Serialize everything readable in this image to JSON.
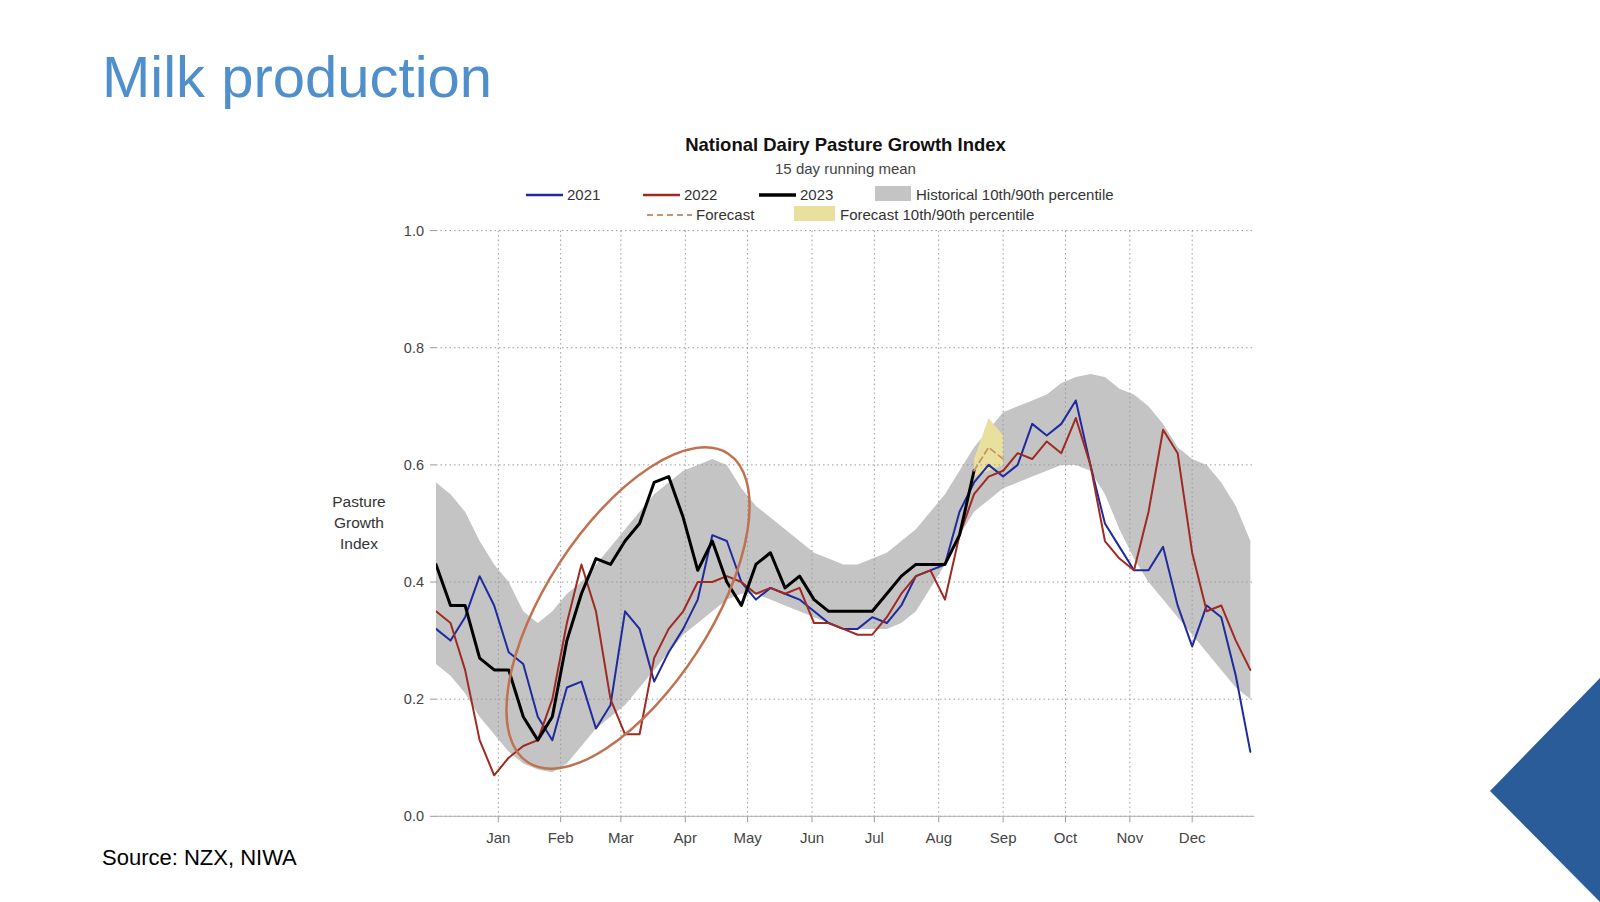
{
  "page": {
    "title": "Milk production",
    "source": "Source: NZX, NIWA"
  },
  "chart_data": {
    "type": "line",
    "title": "National Dairy Pasture Growth Index",
    "subtitle": "15 day running mean",
    "y_label": "Pasture Growth Index",
    "x": [
      -14,
      -7,
      0,
      7,
      14,
      21,
      28,
      35,
      42,
      49,
      56,
      63,
      70,
      77,
      84,
      91,
      98,
      105,
      112,
      119,
      126,
      133,
      140,
      147,
      154,
      161,
      168,
      175,
      182,
      189,
      196,
      203,
      210,
      217,
      224,
      231,
      238,
      245,
      252,
      259,
      266,
      273,
      280,
      287,
      294,
      301,
      308,
      315,
      322,
      329,
      336,
      343,
      350,
      357,
      364,
      371,
      378
    ],
    "xlim": [
      -14,
      380
    ],
    "xticks": [
      {
        "value": 16,
        "label": "Jan"
      },
      {
        "value": 46,
        "label": "Feb"
      },
      {
        "value": 75,
        "label": "Mar"
      },
      {
        "value": 106,
        "label": "Apr"
      },
      {
        "value": 136,
        "label": "May"
      },
      {
        "value": 167,
        "label": "Jun"
      },
      {
        "value": 197,
        "label": "Jul"
      },
      {
        "value": 228,
        "label": "Aug"
      },
      {
        "value": 259,
        "label": "Sep"
      },
      {
        "value": 289,
        "label": "Oct"
      },
      {
        "value": 320,
        "label": "Nov"
      },
      {
        "value": 350,
        "label": "Dec"
      }
    ],
    "ylim": [
      0,
      1
    ],
    "yticks": [
      {
        "value": 0,
        "label": "0.0"
      },
      0.2,
      0.4,
      0.6,
      0.8,
      {
        "value": 1,
        "label": "1.0"
      }
    ],
    "grid": true,
    "series": [
      {
        "name": "2021",
        "color": "#1f2a9e",
        "values": [
          0.32,
          0.3,
          0.34,
          0.41,
          0.36,
          0.28,
          0.26,
          0.17,
          0.13,
          0.22,
          0.23,
          0.15,
          0.19,
          0.35,
          0.32,
          0.23,
          0.28,
          0.32,
          0.37,
          0.48,
          0.47,
          0.4,
          0.37,
          0.39,
          0.38,
          0.37,
          0.35,
          0.33,
          0.32,
          0.32,
          0.34,
          0.33,
          0.36,
          0.41,
          0.42,
          0.43,
          0.52,
          0.57,
          0.6,
          0.58,
          0.6,
          0.67,
          0.65,
          0.67,
          0.71,
          0.6,
          0.5,
          0.46,
          0.42,
          0.42,
          0.46,
          0.36,
          0.29,
          0.36,
          0.34,
          0.24,
          0.11
        ]
      },
      {
        "name": "2022",
        "color": "#9e2a22",
        "values": [
          0.35,
          0.33,
          0.25,
          0.13,
          0.07,
          0.1,
          0.12,
          0.13,
          0.2,
          0.33,
          0.43,
          0.35,
          0.2,
          0.14,
          0.14,
          0.27,
          0.32,
          0.35,
          0.4,
          0.4,
          0.41,
          0.4,
          0.38,
          0.39,
          0.38,
          0.39,
          0.33,
          0.33,
          0.32,
          0.31,
          0.31,
          0.34,
          0.38,
          0.41,
          0.42,
          0.37,
          0.48,
          0.55,
          0.58,
          0.59,
          0.62,
          0.61,
          0.64,
          0.62,
          0.68,
          0.6,
          0.47,
          0.44,
          0.42,
          0.52,
          0.66,
          0.62,
          0.45,
          0.35,
          0.36,
          0.3,
          0.25
        ]
      },
      {
        "name": "2023",
        "color": "#000000",
        "values": [
          0.43,
          0.36,
          0.36,
          0.27,
          0.25,
          0.25,
          0.17,
          0.13,
          0.17,
          0.3,
          0.38,
          0.44,
          0.43,
          0.47,
          0.5,
          0.57,
          0.58,
          0.51,
          0.42,
          0.47,
          0.4,
          0.36,
          0.43,
          0.45,
          0.39,
          0.41,
          0.37,
          0.35,
          0.35,
          0.35,
          0.35,
          0.38,
          0.41,
          0.43,
          0.43,
          0.43,
          0.48,
          0.59,
          null,
          null,
          null,
          null,
          null,
          null,
          null,
          null,
          null,
          null,
          null,
          null,
          null,
          null,
          null,
          null,
          null,
          null,
          null
        ]
      },
      {
        "name": "Historical 10th/90th percentile",
        "type": "band",
        "color": "#c4c4c4",
        "lower": [
          0.26,
          0.24,
          0.21,
          0.17,
          0.14,
          0.11,
          0.09,
          0.08,
          0.075,
          0.09,
          0.12,
          0.15,
          0.17,
          0.19,
          0.22,
          0.25,
          0.28,
          0.31,
          0.33,
          0.35,
          0.37,
          0.38,
          0.38,
          0.37,
          0.36,
          0.35,
          0.34,
          0.33,
          0.32,
          0.32,
          0.32,
          0.32,
          0.33,
          0.35,
          0.39,
          0.43,
          0.48,
          0.52,
          0.54,
          0.56,
          0.57,
          0.58,
          0.59,
          0.6,
          0.6,
          0.59,
          0.55,
          0.49,
          0.44,
          0.4,
          0.37,
          0.34,
          0.31,
          0.28,
          0.25,
          0.22,
          0.2
        ],
        "upper": [
          0.57,
          0.55,
          0.52,
          0.47,
          0.43,
          0.4,
          0.35,
          0.33,
          0.35,
          0.38,
          0.4,
          0.43,
          0.46,
          0.49,
          0.52,
          0.55,
          0.57,
          0.59,
          0.6,
          0.61,
          0.6,
          0.56,
          0.53,
          0.51,
          0.49,
          0.47,
          0.45,
          0.44,
          0.43,
          0.43,
          0.44,
          0.45,
          0.47,
          0.49,
          0.52,
          0.55,
          0.59,
          0.63,
          0.66,
          0.69,
          0.7,
          0.71,
          0.72,
          0.74,
          0.75,
          0.755,
          0.75,
          0.73,
          0.72,
          0.7,
          0.67,
          0.63,
          0.61,
          0.6,
          0.57,
          0.53,
          0.47
        ]
      },
      {
        "name": "Forecast",
        "color": "#c8926a",
        "line_style": "dashed",
        "values": [
          null,
          null,
          null,
          null,
          null,
          null,
          null,
          null,
          null,
          null,
          null,
          null,
          null,
          null,
          null,
          null,
          null,
          null,
          null,
          null,
          null,
          null,
          null,
          null,
          null,
          null,
          null,
          null,
          null,
          null,
          null,
          null,
          null,
          null,
          null,
          null,
          null,
          0.59,
          0.63,
          0.61,
          null,
          null,
          null,
          null,
          null,
          null,
          null,
          null,
          null,
          null,
          null,
          null,
          null,
          null,
          null,
          null,
          null
        ]
      },
      {
        "name": "Forecast 10th/90th percentile",
        "type": "band",
        "color": "#e8e09c",
        "lower": [
          null,
          null,
          null,
          null,
          null,
          null,
          null,
          null,
          null,
          null,
          null,
          null,
          null,
          null,
          null,
          null,
          null,
          null,
          null,
          null,
          null,
          null,
          null,
          null,
          null,
          null,
          null,
          null,
          null,
          null,
          null,
          null,
          null,
          null,
          null,
          null,
          null,
          0.58,
          0.59,
          0.6,
          null,
          null,
          null,
          null,
          null,
          null,
          null,
          null,
          null,
          null,
          null,
          null,
          null,
          null,
          null,
          null,
          null
        ],
        "upper": [
          null,
          null,
          null,
          null,
          null,
          null,
          null,
          null,
          null,
          null,
          null,
          null,
          null,
          null,
          null,
          null,
          null,
          null,
          null,
          null,
          null,
          null,
          null,
          null,
          null,
          null,
          null,
          null,
          null,
          null,
          null,
          null,
          null,
          null,
          null,
          null,
          null,
          0.61,
          0.68,
          0.65,
          null,
          null,
          null,
          null,
          null,
          null,
          null,
          null,
          null,
          null,
          null,
          null,
          null,
          null,
          null,
          null,
          null
        ]
      }
    ]
  }
}
